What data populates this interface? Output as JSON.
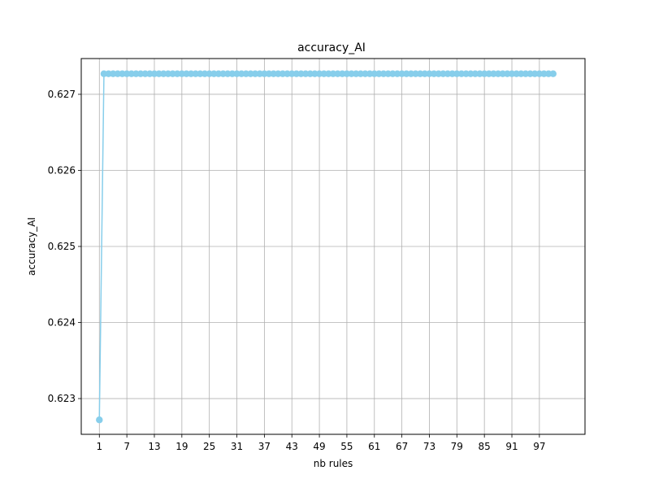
{
  "chart_data": {
    "type": "line",
    "title": "accuracy_AI",
    "xlabel": "nb rules",
    "ylabel": "accuracy_AI",
    "x_ticks": [
      1,
      7,
      13,
      19,
      25,
      31,
      37,
      43,
      49,
      55,
      61,
      67,
      73,
      79,
      85,
      91,
      97
    ],
    "y_ticks": [
      0.623,
      0.624,
      0.625,
      0.626,
      0.627
    ],
    "xlim": [
      -2.95,
      106.95
    ],
    "ylim": [
      0.62253,
      0.62747
    ],
    "grid": true,
    "series_color": "#87ceeb",
    "x_range": [
      1,
      100
    ],
    "series": [
      {
        "values": [
          0.62272,
          0.62727,
          0.62727,
          0.62727,
          0.62727,
          0.62727,
          0.62727,
          0.62727,
          0.62727,
          0.62727,
          0.62727,
          0.62727,
          0.62727,
          0.62727,
          0.62727,
          0.62727,
          0.62727,
          0.62727,
          0.62727,
          0.62727,
          0.62727,
          0.62727,
          0.62727,
          0.62727,
          0.62727,
          0.62727,
          0.62727,
          0.62727,
          0.62727,
          0.62727,
          0.62727,
          0.62727,
          0.62727,
          0.62727,
          0.62727,
          0.62727,
          0.62727,
          0.62727,
          0.62727,
          0.62727,
          0.62727,
          0.62727,
          0.62727,
          0.62727,
          0.62727,
          0.62727,
          0.62727,
          0.62727,
          0.62727,
          0.62727,
          0.62727,
          0.62727,
          0.62727,
          0.62727,
          0.62727,
          0.62727,
          0.62727,
          0.62727,
          0.62727,
          0.62727,
          0.62727,
          0.62727,
          0.62727,
          0.62727,
          0.62727,
          0.62727,
          0.62727,
          0.62727,
          0.62727,
          0.62727,
          0.62727,
          0.62727,
          0.62727,
          0.62727,
          0.62727,
          0.62727,
          0.62727,
          0.62727,
          0.62727,
          0.62727,
          0.62727,
          0.62727,
          0.62727,
          0.62727,
          0.62727,
          0.62727,
          0.62727,
          0.62727,
          0.62727,
          0.62727,
          0.62727,
          0.62727,
          0.62727,
          0.62727,
          0.62727,
          0.62727,
          0.62727,
          0.62727,
          0.62727,
          0.62727
        ]
      }
    ]
  }
}
